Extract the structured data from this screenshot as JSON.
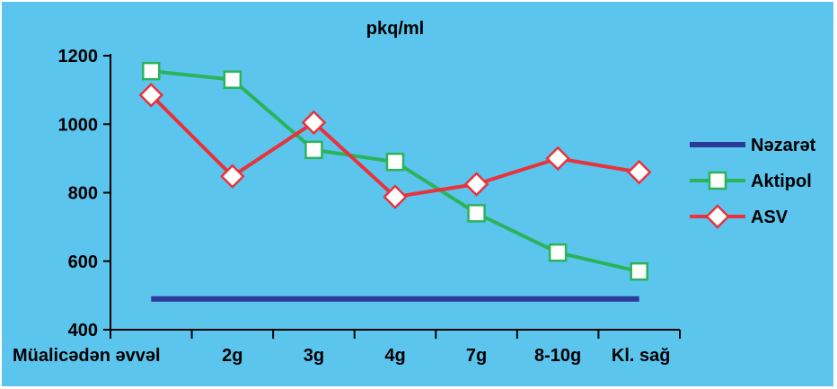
{
  "chart_data": {
    "type": "line",
    "title": "pkq/ml",
    "xlabel": "",
    "ylabel": "",
    "categories": [
      "Müalicədən əvvəl",
      "2g",
      "3g",
      "4g",
      "7g",
      "8-10g",
      "Kl. sağ"
    ],
    "ylim": [
      400,
      1200
    ],
    "yticks": [
      400,
      600,
      800,
      1000,
      1200
    ],
    "grid": false,
    "legend_position": "right",
    "series": [
      {
        "name": "Nəzarət",
        "color": "#2b3a96",
        "marker": "none",
        "values": [
          490,
          490,
          490,
          490,
          490,
          490,
          490
        ]
      },
      {
        "name": "Aktipol",
        "color": "#2bb35a",
        "marker": "square",
        "values": [
          1155,
          1130,
          925,
          890,
          740,
          625,
          570
        ]
      },
      {
        "name": "ASV",
        "color": "#e8323c",
        "marker": "diamond",
        "values": [
          1085,
          848,
          1005,
          788,
          825,
          900,
          860
        ]
      }
    ],
    "colors": {
      "background": "#5bc5ee",
      "axis": "#000000"
    }
  }
}
